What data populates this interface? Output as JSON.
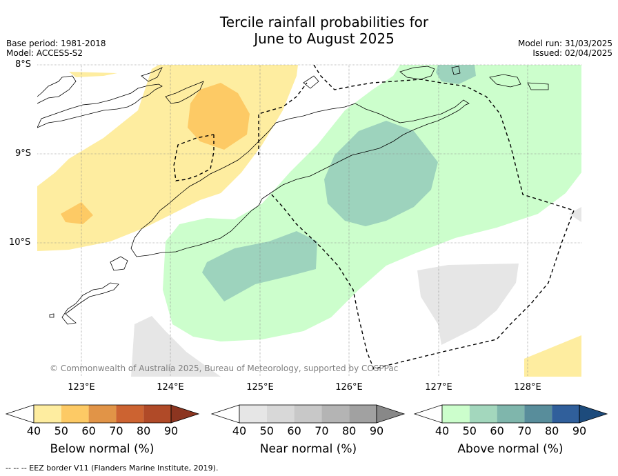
{
  "title_line1": "Tercile rainfall probabilities for",
  "title_line2": "June to August 2025",
  "meta": {
    "base_period": "Base period: 1981-2018",
    "model": "Model: ACCESS-S2",
    "model_run": "Model run: 31/03/2025",
    "issued": "Issued: 02/04/2025"
  },
  "map": {
    "lat_labels": [
      "8°S",
      "9°S",
      "10°S"
    ],
    "lon_labels": [
      "123°E",
      "124°E",
      "125°E",
      "126°E",
      "127°E",
      "128°E"
    ],
    "copyright": "© Commonwealth of Australia 2025, Bureau of Meteorology, supported by COSPPac",
    "colors": {
      "below_50": "#feeda0",
      "below_60": "#fdca65",
      "near_40": "#e6e6e6",
      "above_50": "#ccfecc",
      "above_60": "#9dd3bd"
    }
  },
  "colorbars": [
    {
      "label": "Below normal (%)",
      "ticks": [
        "40",
        "50",
        "60",
        "70",
        "80",
        "90"
      ],
      "colors": [
        "#feeda0",
        "#fdca65",
        "#e19447",
        "#cc6331",
        "#b04a28"
      ],
      "arrow_color": "#8c3520"
    },
    {
      "label": "Near normal (%)",
      "ticks": [
        "40",
        "50",
        "60",
        "70",
        "80",
        "90"
      ],
      "colors": [
        "#e6e6e6",
        "#d8d8d8",
        "#c8c8c8",
        "#b4b4b4",
        "#a1a1a1"
      ],
      "arrow_color": "#888888"
    },
    {
      "label": "Above normal (%)",
      "ticks": [
        "40",
        "50",
        "60",
        "70",
        "80",
        "90"
      ],
      "colors": [
        "#ccfecc",
        "#a3d7bd",
        "#7fb6ac",
        "#588d9b",
        "#305f9b"
      ],
      "arrow_color": "#1d4b7c"
    }
  ],
  "footer": "--  --  -- EEZ border V11 (Flanders Marine Institute, 2019)."
}
